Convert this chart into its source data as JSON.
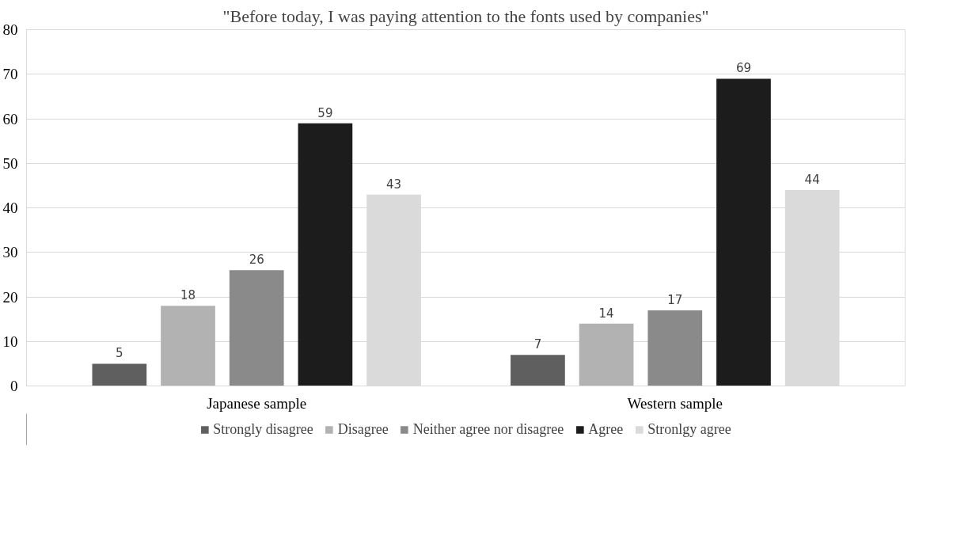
{
  "chart_data": {
    "type": "bar",
    "title": "\"Before today, I was paying attention to the fonts used by companies\"",
    "categories": [
      "Japanese sample",
      "Western sample"
    ],
    "series": [
      {
        "name": "Strongly disagree",
        "color": "#5f5f5f",
        "values": [
          5,
          7
        ]
      },
      {
        "name": "Disagree",
        "color": "#b2b2b2",
        "values": [
          18,
          14
        ]
      },
      {
        "name": "Neither agree nor disagree",
        "color": "#8a8a8a",
        "values": [
          26,
          17
        ]
      },
      {
        "name": "Agree",
        "color": "#1c1c1c",
        "values": [
          59,
          69
        ]
      },
      {
        "name": "Stronlgy agree",
        "color": "#dadada",
        "values": [
          43,
          44
        ]
      }
    ],
    "ylim": [
      0,
      80
    ],
    "yticks": [
      0,
      10,
      20,
      30,
      40,
      50,
      60,
      70,
      80
    ],
    "grid": "y",
    "legend": "bottom",
    "data_labels": true
  }
}
